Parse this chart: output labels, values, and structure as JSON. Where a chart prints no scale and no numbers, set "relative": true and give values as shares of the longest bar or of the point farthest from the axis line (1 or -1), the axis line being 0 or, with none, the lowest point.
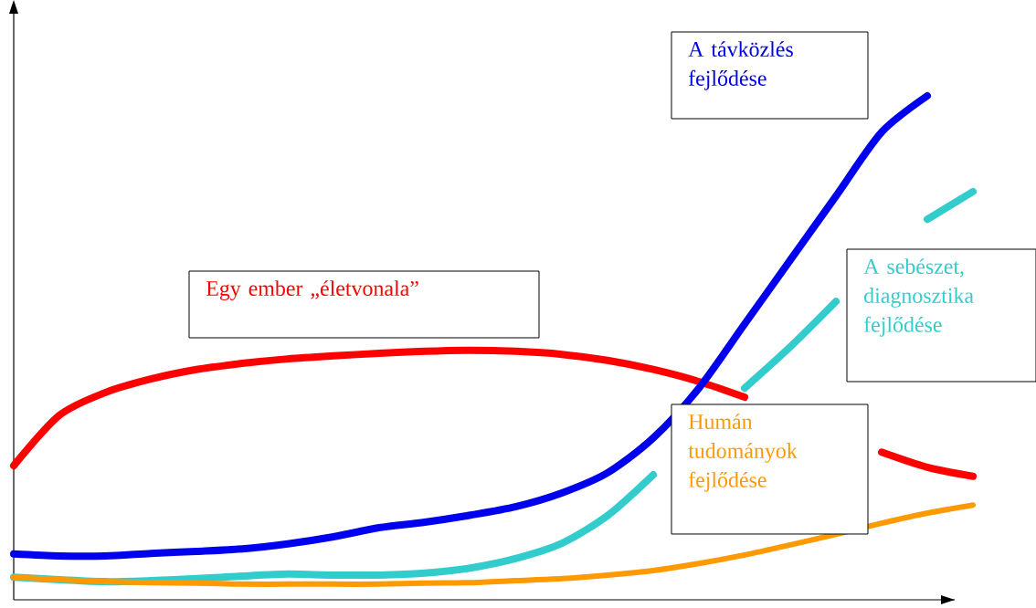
{
  "chart_data": {
    "type": "line",
    "relative": true,
    "line_style": "solid",
    "marker": "none",
    "legend": false,
    "categories": [
      null,
      null,
      null,
      null,
      null,
      null,
      null,
      null,
      null,
      null,
      null,
      null,
      null,
      null,
      null,
      null,
      null,
      null,
      null,
      null,
      null,
      null
    ],
    "series": [
      {
        "name": "Egy ember „életvonala”",
        "color": "#ff0000",
        "values": [
          0.266,
          0.366,
          0.411,
          0.438,
          0.457,
          0.469,
          0.478,
          0.484,
          0.489,
          0.493,
          0.495,
          0.493,
          0.487,
          0.475,
          0.457,
          0.433,
          0.402,
          null,
          null,
          0.293,
          0.263,
          0.245
        ]
      },
      {
        "name": "A sebészet, diagnosztika fejlődése",
        "color": "#33cccc",
        "values": [
          0.045,
          0.04,
          0.036,
          0.038,
          0.042,
          0.047,
          0.051,
          0.049,
          0.049,
          0.053,
          0.063,
          0.082,
          0.112,
          0.167,
          0.248,
          null,
          0.42,
          0.502,
          0.592,
          null,
          0.755,
          0.81
        ]
      },
      {
        "name": "A távközlés fejlődése",
        "color": "#0000ee",
        "values": [
          0.091,
          0.087,
          0.087,
          0.092,
          0.096,
          0.101,
          0.111,
          0.125,
          0.143,
          0.154,
          0.168,
          0.185,
          0.212,
          0.252,
          0.321,
          0.42,
          0.547,
          0.674,
          0.801,
          0.928,
          1,
          null
        ]
      },
      {
        "name": "Humán tudományok fejlődése",
        "color": "#ff9900",
        "values": [
          0.045,
          0.04,
          0.036,
          0.034,
          0.033,
          0.031,
          0.031,
          0.031,
          0.031,
          0.033,
          0.034,
          0.038,
          0.042,
          0.049,
          0.058,
          0.072,
          0.089,
          0.109,
          0.13,
          0.152,
          0.172,
          0.188
        ]
      }
    ]
  }
}
